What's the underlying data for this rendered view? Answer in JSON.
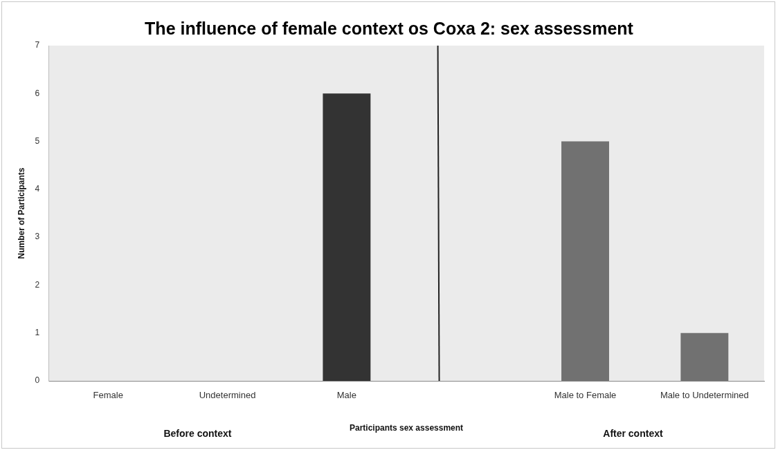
{
  "chart_data": {
    "type": "bar",
    "title": "The influence of female context os Coxa 2: sex assessment",
    "xlabel": "Participants sex assessment",
    "ylabel": "Number of Participants",
    "categories": [
      "Female",
      "Undetermined",
      "Male",
      null,
      "Male to Female",
      "Male to Undetermined"
    ],
    "values": [
      0,
      0,
      6,
      null,
      5,
      1
    ],
    "colors": [
      "#717171",
      "#717171",
      "#333333",
      "#717171",
      "#717171",
      "#717171"
    ],
    "ylim": [
      0,
      7
    ],
    "yticks": [
      0,
      1,
      2,
      3,
      4,
      5,
      6,
      7
    ],
    "grid": false,
    "legend": false,
    "annotations": [
      "Before context",
      "After context"
    ]
  }
}
